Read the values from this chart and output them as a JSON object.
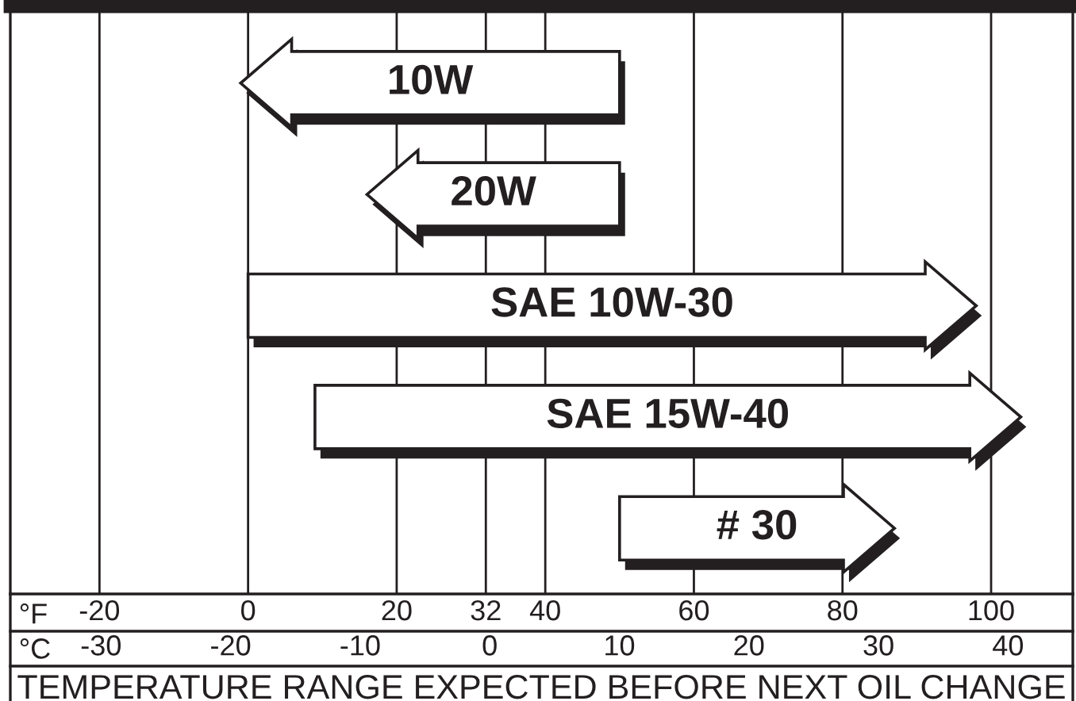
{
  "chart_data": {
    "type": "bar",
    "orientation": "horizontal",
    "categories": [
      "10W",
      "20W",
      "SAE 10W-30",
      "SAE 15W-40",
      "# 30"
    ],
    "base": [
      50,
      50,
      0,
      9,
      50
    ],
    "values": [
      -51,
      -34,
      98,
      95,
      37
    ],
    "color": "#ffffff",
    "xlabel": "°F",
    "x2label": "°C",
    "xlim": [
      -32,
      111
    ],
    "xticks": [
      -20,
      0,
      20,
      32,
      40,
      60,
      80,
      100
    ],
    "x2lim": [
      -37,
      45
    ],
    "x2ticks": [
      -30,
      -20,
      -10,
      0,
      10,
      20,
      30,
      40
    ],
    "grid": "x",
    "annotations": [
      "TEMPERATURE RANGE EXPECTED BEFORE NEXT OIL CHANGE"
    ]
  }
}
